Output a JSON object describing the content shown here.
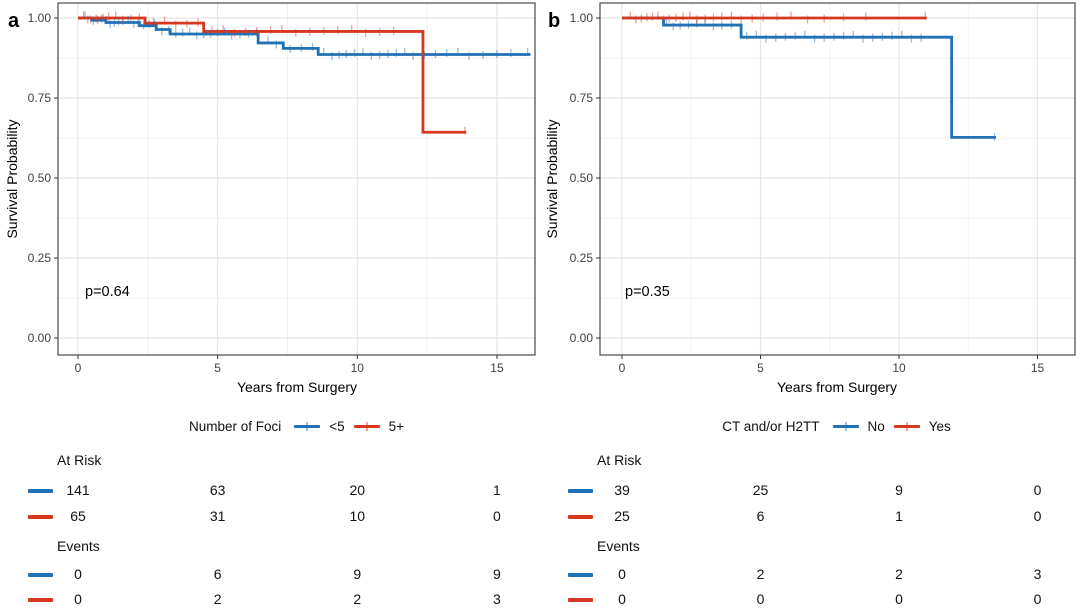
{
  "figure_background": "#ffffff",
  "palette": {
    "blue": "#2171b5",
    "red": "#d7381d"
  },
  "chart_data": [
    {
      "type": "line",
      "subtype": "kaplan-meier-step",
      "panel_label": "a",
      "p_value": "p=0.64",
      "xlabel": "Years from Surgery",
      "ylabel": "Survival Probability",
      "x_ticks": [
        0,
        5,
        10,
        15
      ],
      "y_tick_labels": [
        "1.00",
        "0.75",
        "0.50",
        "0.25",
        "0.00"
      ],
      "y_tick_values": [
        1.0,
        0.75,
        0.5,
        0.25,
        0.0
      ],
      "xlim": [
        0,
        16.4
      ],
      "ylim": [
        0,
        1.05
      ],
      "grid": true,
      "legend_position": "bottom",
      "legend_title": "Number of Foci",
      "series": [
        {
          "name": "<5",
          "color": "#2171b5",
          "steps": [
            [
              0,
              1.0
            ],
            [
              0.5,
              0.993
            ],
            [
              1.0,
              0.986
            ],
            [
              2.2,
              0.976
            ],
            [
              2.8,
              0.964
            ],
            [
              3.3,
              0.95
            ],
            [
              6.45,
              0.922
            ],
            [
              7.35,
              0.905
            ],
            [
              8.6,
              0.886
            ]
          ],
          "end_year": 16.2,
          "censor_years": [
            0.2,
            0.35,
            0.55,
            0.7,
            0.85,
            1.0,
            1.15,
            1.3,
            1.45,
            1.6,
            1.8,
            2.0,
            2.15,
            2.35,
            2.55,
            2.75,
            3.0,
            3.25,
            3.5,
            3.75,
            4.0,
            4.25,
            4.5,
            4.75,
            5.0,
            5.25,
            5.5,
            5.8,
            6.1,
            6.4,
            6.8,
            7.1,
            7.6,
            8.0,
            8.4,
            8.8,
            9.1,
            9.35,
            9.6,
            9.9,
            10.2,
            10.5,
            10.8,
            11.1,
            11.4,
            11.7,
            12.0,
            12.4,
            12.8,
            13.2,
            13.6,
            14.0,
            14.5,
            15.0,
            15.5,
            16.1
          ]
        },
        {
          "name": "5+",
          "color": "#d7381d",
          "steps": [
            [
              0,
              1.0
            ],
            [
              2.4,
              0.984
            ],
            [
              4.5,
              0.958
            ],
            [
              12.35,
              0.643
            ]
          ],
          "end_year": 13.9,
          "censor_years": [
            0.25,
            0.45,
            0.65,
            0.9,
            1.1,
            1.35,
            1.6,
            1.9,
            2.2,
            2.7,
            3.1,
            3.5,
            3.9,
            4.3,
            4.8,
            5.2,
            5.6,
            6.0,
            6.4,
            6.9,
            7.3,
            7.8,
            8.3,
            8.8,
            9.3,
            9.8,
            10.3,
            10.8,
            11.3,
            13.85
          ]
        }
      ],
      "risk_table": {
        "times": [
          0,
          5,
          10,
          15
        ],
        "sections": [
          {
            "label": "At Risk",
            "rows": [
              {
                "group": "<5",
                "color": "#2171b5",
                "values": [
                  141,
                  63,
                  20,
                  1
                ]
              },
              {
                "group": "5+",
                "color": "#d7381d",
                "values": [
                  65,
                  31,
                  10,
                  0
                ]
              }
            ]
          },
          {
            "label": "Events",
            "rows": [
              {
                "group": "<5",
                "color": "#2171b5",
                "values": [
                  0,
                  6,
                  9,
                  9
                ]
              },
              {
                "group": "5+",
                "color": "#d7381d",
                "values": [
                  0,
                  2,
                  2,
                  3
                ]
              }
            ]
          }
        ]
      }
    },
    {
      "type": "line",
      "subtype": "kaplan-meier-step",
      "panel_label": "b",
      "p_value": "p=0.35",
      "xlabel": "Years from Surgery",
      "ylabel": "Survival Probability",
      "x_ticks": [
        0,
        5,
        10,
        15
      ],
      "y_tick_labels": [
        "1.00",
        "0.75",
        "0.50",
        "0.25",
        "0.00"
      ],
      "y_tick_values": [
        1.0,
        0.75,
        0.5,
        0.25,
        0.0
      ],
      "xlim": [
        0,
        16.4
      ],
      "ylim": [
        0,
        1.05
      ],
      "grid": true,
      "legend_position": "bottom",
      "legend_title": "CT and/or H2TT",
      "series": [
        {
          "name": "No",
          "color": "#2171b5",
          "steps": [
            [
              0,
              1.0
            ],
            [
              1.5,
              0.978
            ],
            [
              4.3,
              0.94
            ],
            [
              11.9,
              0.627
            ]
          ],
          "end_year": 13.5,
          "censor_years": [
            1.6,
            1.85,
            2.1,
            2.4,
            2.7,
            3.0,
            3.3,
            3.6,
            3.95,
            4.5,
            4.85,
            5.2,
            5.55,
            5.9,
            6.25,
            6.6,
            6.95,
            7.3,
            7.65,
            8.0,
            8.35,
            8.7,
            9.05,
            9.4,
            9.75,
            10.1,
            10.45,
            10.8,
            13.45
          ]
        },
        {
          "name": "Yes",
          "color": "#d7381d",
          "steps": [
            [
              0,
              1.0
            ]
          ],
          "end_year": 11.0,
          "censor_years": [
            0.3,
            0.5,
            0.7,
            0.9,
            1.1,
            1.3,
            1.5,
            1.7,
            1.95,
            2.2,
            2.45,
            2.7,
            3.0,
            3.3,
            3.6,
            3.95,
            4.3,
            4.7,
            5.1,
            5.6,
            6.1,
            6.7,
            7.3,
            8.0,
            8.8,
            10.95
          ]
        }
      ],
      "risk_table": {
        "times": [
          0,
          5,
          10,
          15
        ],
        "sections": [
          {
            "label": "At Risk",
            "rows": [
              {
                "group": "No",
                "color": "#2171b5",
                "values": [
                  39,
                  25,
                  9,
                  0
                ]
              },
              {
                "group": "Yes",
                "color": "#d7381d",
                "values": [
                  25,
                  6,
                  1,
                  0
                ]
              }
            ]
          },
          {
            "label": "Events",
            "rows": [
              {
                "group": "No",
                "color": "#2171b5",
                "values": [
                  0,
                  2,
                  2,
                  3
                ]
              },
              {
                "group": "Yes",
                "color": "#d7381d",
                "values": [
                  0,
                  0,
                  0,
                  0
                ]
              }
            ]
          }
        ]
      }
    }
  ]
}
